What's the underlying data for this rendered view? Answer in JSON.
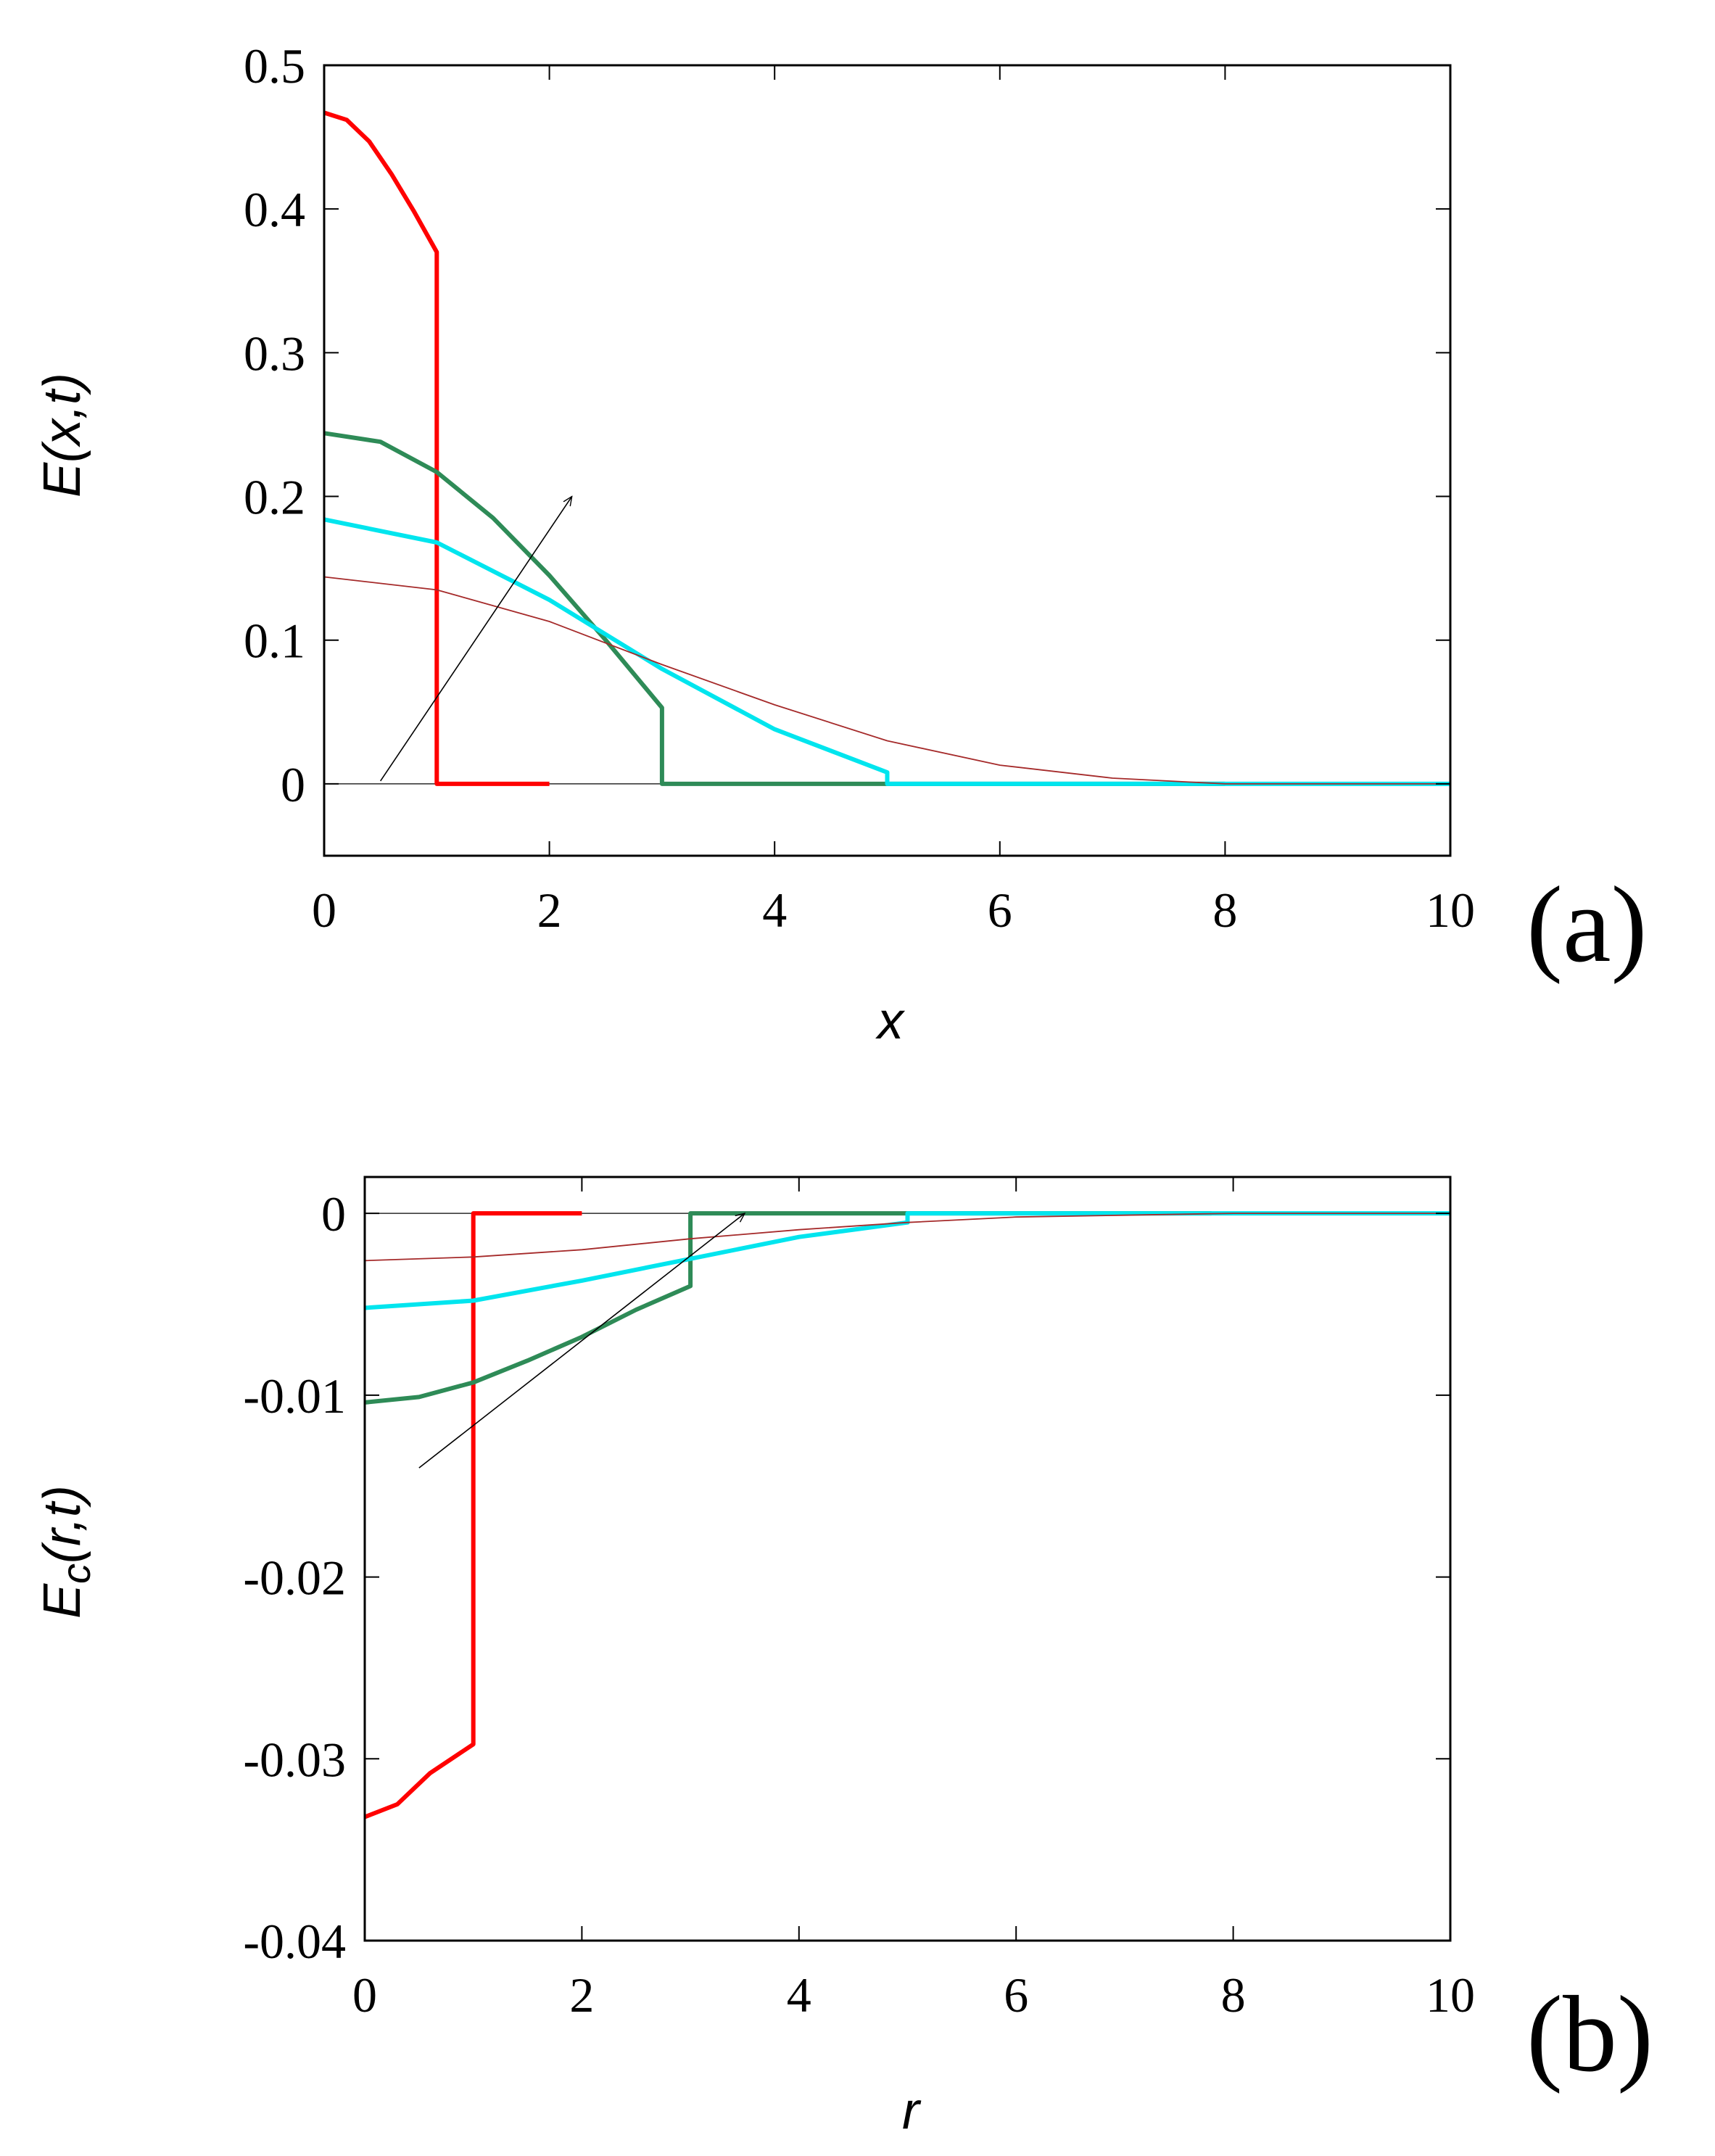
{
  "chart_data": [
    {
      "type": "line",
      "panel_label": "(a)",
      "xlabel": "x",
      "ylabel": "E(x,t)",
      "xlim": [
        0,
        10
      ],
      "ylim": [
        -0.05,
        0.5
      ],
      "xticks": [
        "0",
        "2",
        "4",
        "6",
        "8",
        "10"
      ],
      "yticks": [
        "0",
        "0.1",
        "0.2",
        "0.3",
        "0.4",
        "0.5"
      ],
      "grid": false,
      "colors": {
        "red": "#ff0000",
        "green": "#2e8b57",
        "cyan": "#00e5ee",
        "brown": "#a52a2a"
      },
      "series": [
        {
          "color": "#ff0000",
          "points": [
            [
              0,
              0.467
            ],
            [
              0.2,
              0.462
            ],
            [
              0.4,
              0.447
            ],
            [
              0.6,
              0.424
            ],
            [
              0.8,
              0.398
            ],
            [
              1.0,
              0.37
            ],
            [
              1.0,
              0.0
            ],
            [
              2.0,
              0.0
            ]
          ]
        },
        {
          "color": "#2e8b57",
          "points": [
            [
              0,
              0.244
            ],
            [
              0.5,
              0.238
            ],
            [
              1.0,
              0.217
            ],
            [
              1.5,
              0.185
            ],
            [
              2.0,
              0.145
            ],
            [
              2.5,
              0.1
            ],
            [
              3.0,
              0.053
            ],
            [
              3.0,
              0.0
            ],
            [
              8.0,
              0.0
            ]
          ]
        },
        {
          "color": "#00e5ee",
          "points": [
            [
              0,
              0.184
            ],
            [
              1.0,
              0.168
            ],
            [
              2.0,
              0.128
            ],
            [
              3.0,
              0.08
            ],
            [
              4.0,
              0.038
            ],
            [
              5.0,
              0.008
            ],
            [
              5.0,
              0.0
            ],
            [
              10.0,
              0.0
            ]
          ]
        },
        {
          "color": "#a52a2a",
          "points": [
            [
              0,
              0.144
            ],
            [
              1.0,
              0.135
            ],
            [
              2.0,
              0.113
            ],
            [
              3.0,
              0.083
            ],
            [
              4.0,
              0.055
            ],
            [
              5.0,
              0.03
            ],
            [
              6.0,
              0.013
            ],
            [
              7.0,
              0.004
            ],
            [
              8.0,
              0.0
            ],
            [
              10.0,
              0.0
            ]
          ]
        }
      ],
      "annotation_arrow": {
        "from": [
          0.5,
          0.002
        ],
        "to": [
          2.2,
          0.2
        ]
      }
    },
    {
      "type": "line",
      "panel_label": "(b)",
      "xlabel": "r",
      "ylabel": "E_c(r,t)",
      "xlim": [
        0,
        10
      ],
      "ylim": [
        -0.04,
        0.002
      ],
      "xticks": [
        "0",
        "2",
        "4",
        "6",
        "8",
        "10"
      ],
      "yticks": [
        "0",
        "-0.01",
        "-0.02",
        "-0.03",
        "-0.04"
      ],
      "grid": false,
      "colors": {
        "red": "#ff0000",
        "green": "#2e8b57",
        "cyan": "#00e5ee",
        "brown": "#a52a2a"
      },
      "series": [
        {
          "color": "#ff0000",
          "points": [
            [
              0,
              -0.0332
            ],
            [
              0.3,
              -0.0325
            ],
            [
              0.6,
              -0.0308
            ],
            [
              1.0,
              -0.0292
            ],
            [
              1.0,
              0.0
            ],
            [
              2.0,
              0.0
            ]
          ]
        },
        {
          "color": "#2e8b57",
          "points": [
            [
              0,
              -0.0104
            ],
            [
              0.5,
              -0.0101
            ],
            [
              1.0,
              -0.0093
            ],
            [
              1.5,
              -0.0081
            ],
            [
              2.0,
              -0.0068
            ],
            [
              2.5,
              -0.0053
            ],
            [
              3.0,
              -0.004
            ],
            [
              3.0,
              0.0
            ],
            [
              7.8,
              0.0
            ]
          ]
        },
        {
          "color": "#00e5ee",
          "points": [
            [
              0,
              -0.0052
            ],
            [
              1.0,
              -0.0048
            ],
            [
              2.0,
              -0.0037
            ],
            [
              3.0,
              -0.0025
            ],
            [
              4.0,
              -0.0013
            ],
            [
              5.0,
              -0.0005
            ],
            [
              5.0,
              0.0
            ],
            [
              10.0,
              0.0
            ]
          ]
        },
        {
          "color": "#a52a2a",
          "points": [
            [
              0,
              -0.0026
            ],
            [
              1.0,
              -0.0024
            ],
            [
              2.0,
              -0.002
            ],
            [
              3.0,
              -0.0014
            ],
            [
              4.0,
              -0.0009
            ],
            [
              5.0,
              -0.0005
            ],
            [
              6.0,
              -0.0002
            ],
            [
              7.0,
              -0.0001
            ],
            [
              8.0,
              0.0
            ],
            [
              10.0,
              0.0
            ]
          ]
        }
      ],
      "annotation_arrow": {
        "from": [
          0.5,
          -0.014
        ],
        "to": [
          3.5,
          0.0
        ]
      }
    }
  ]
}
